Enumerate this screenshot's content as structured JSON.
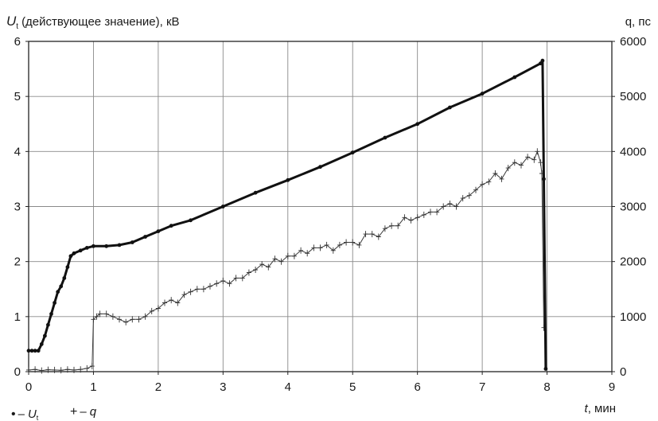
{
  "chart_data": {
    "type": "line",
    "ylabel_left": {
      "symbol": "U",
      "subscript": "t",
      "text": "(действующее значение), кВ"
    },
    "ylabel_right": "q, пс",
    "xlabel": {
      "symbol": "t",
      "text": ", мин"
    },
    "x_ticks": [
      "0",
      "1",
      "2",
      "3",
      "4",
      "5",
      "6",
      "7",
      "8",
      "9"
    ],
    "y_left_ticks": [
      "0",
      "1",
      "2",
      "3",
      "4",
      "5",
      "6"
    ],
    "y_right_ticks": [
      "0",
      "1000",
      "2000",
      "3000",
      "4000",
      "5000",
      "6000"
    ],
    "xlim": [
      0,
      9
    ],
    "ylim_left": [
      0,
      6
    ],
    "ylim_right": [
      0,
      6000
    ],
    "grid": true,
    "legend_position": "bottom-left",
    "legend": [
      {
        "marker": "•",
        "dash": "–",
        "symbol": "U",
        "subscript": "t"
      },
      {
        "marker": "+",
        "dash": "–",
        "symbol": "q",
        "subscript": ""
      }
    ],
    "series": [
      {
        "name": "U_t",
        "axis": "left",
        "x": [
          0,
          0.05,
          0.1,
          0.15,
          0.2,
          0.25,
          0.3,
          0.35,
          0.4,
          0.45,
          0.5,
          0.55,
          0.6,
          0.65,
          0.7,
          0.8,
          0.9,
          1.0,
          1.2,
          1.4,
          1.6,
          1.8,
          2.0,
          2.2,
          2.5,
          3.0,
          3.5,
          4.0,
          4.5,
          5.0,
          5.5,
          6.0,
          6.5,
          7.0,
          7.5,
          7.9,
          7.93,
          7.95,
          7.98
        ],
        "y": [
          0.38,
          0.38,
          0.38,
          0.38,
          0.5,
          0.65,
          0.85,
          1.05,
          1.25,
          1.45,
          1.55,
          1.7,
          1.9,
          2.1,
          2.15,
          2.2,
          2.25,
          2.28,
          2.28,
          2.3,
          2.35,
          2.45,
          2.55,
          2.65,
          2.75,
          3.0,
          3.25,
          3.48,
          3.72,
          3.98,
          4.25,
          4.5,
          4.8,
          5.05,
          5.35,
          5.6,
          5.65,
          3.5,
          0.05
        ]
      },
      {
        "name": "q",
        "axis": "right",
        "x": [
          0,
          0.1,
          0.2,
          0.3,
          0.4,
          0.5,
          0.6,
          0.7,
          0.8,
          0.9,
          0.98,
          1.0,
          1.05,
          1.1,
          1.2,
          1.3,
          1.4,
          1.5,
          1.6,
          1.7,
          1.8,
          1.9,
          2.0,
          2.1,
          2.2,
          2.3,
          2.4,
          2.5,
          2.6,
          2.7,
          2.8,
          2.9,
          3.0,
          3.1,
          3.2,
          3.3,
          3.4,
          3.5,
          3.6,
          3.7,
          3.8,
          3.9,
          4.0,
          4.1,
          4.2,
          4.3,
          4.4,
          4.5,
          4.6,
          4.7,
          4.8,
          4.9,
          5.0,
          5.1,
          5.2,
          5.3,
          5.4,
          5.5,
          5.6,
          5.7,
          5.8,
          5.9,
          6.0,
          6.1,
          6.2,
          6.3,
          6.4,
          6.5,
          6.6,
          6.7,
          6.8,
          6.9,
          7.0,
          7.1,
          7.2,
          7.3,
          7.4,
          7.5,
          7.6,
          7.7,
          7.8,
          7.85,
          7.9,
          7.92,
          7.95
        ],
        "y": [
          30,
          40,
          20,
          35,
          30,
          25,
          40,
          30,
          40,
          60,
          100,
          950,
          1000,
          1050,
          1050,
          1000,
          950,
          900,
          950,
          950,
          1000,
          1100,
          1150,
          1250,
          1300,
          1250,
          1400,
          1450,
          1500,
          1500,
          1550,
          1600,
          1650,
          1600,
          1700,
          1700,
          1800,
          1850,
          1950,
          1900,
          2050,
          2000,
          2100,
          2100,
          2200,
          2150,
          2250,
          2250,
          2300,
          2200,
          2300,
          2350,
          2350,
          2300,
          2500,
          2500,
          2450,
          2600,
          2650,
          2650,
          2800,
          2750,
          2800,
          2850,
          2900,
          2900,
          3000,
          3050,
          3000,
          3150,
          3200,
          3300,
          3400,
          3450,
          3600,
          3500,
          3700,
          3800,
          3750,
          3900,
          3850,
          4000,
          3800,
          3600,
          800
        ]
      }
    ]
  }
}
